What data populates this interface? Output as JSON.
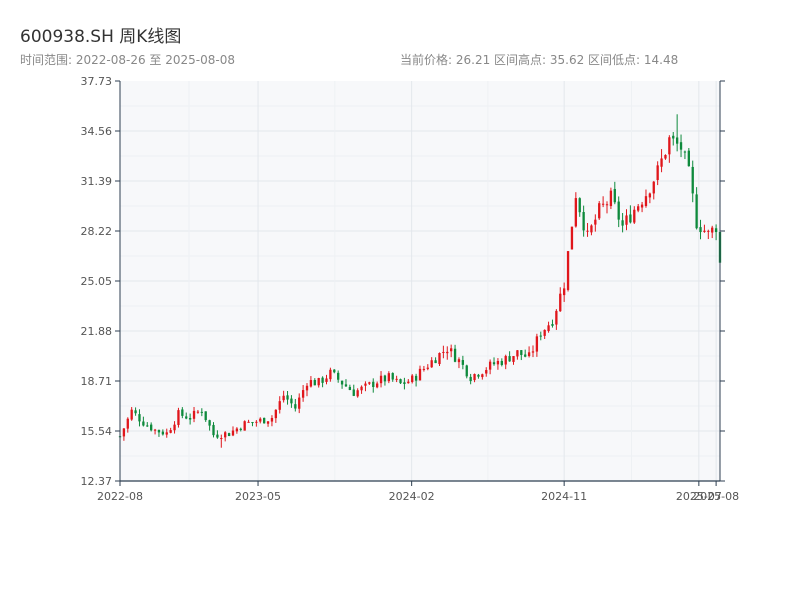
{
  "header": {
    "title": "600938.SH 周K线图",
    "range_text": "时间范围: 2022-08-26 至 2025-08-08",
    "stats_text": "当前价格: 26.21  区间高点: 35.62  区间低点: 14.48"
  },
  "colors": {
    "up": "#e0161b",
    "down": "#0e8a3c",
    "grid": "#e3e7ec",
    "plot_bg": "#f7f8fa",
    "axis": "#2c3e50"
  },
  "chart_data": {
    "type": "candlestick",
    "title": "600938.SH 周K线图",
    "start_date": "2022-08-26",
    "end_date": "2025-08-08",
    "ylim": [
      12.37,
      37.73
    ],
    "y_ticks": [
      "12.37",
      "15.54",
      "18.71",
      "21.88",
      "25.05",
      "28.22",
      "31.39",
      "34.56",
      "37.73"
    ],
    "x_ticks": [
      "2022-08",
      "2023-05",
      "2024-02",
      "2024-11",
      "2025-07",
      "2025-08"
    ],
    "grid": true,
    "current_price": 26.21,
    "high": 35.62,
    "low": 14.48,
    "close_path": [
      [
        0,
        15.2
      ],
      [
        3,
        16.8
      ],
      [
        6,
        16.1
      ],
      [
        9,
        15.6
      ],
      [
        12,
        15.4
      ],
      [
        15,
        16.6
      ],
      [
        18,
        16.4
      ],
      [
        21,
        16.9
      ],
      [
        24,
        15.3
      ],
      [
        28,
        15.4
      ],
      [
        32,
        16.0
      ],
      [
        36,
        16.2
      ],
      [
        39,
        16.4
      ],
      [
        42,
        17.8
      ],
      [
        45,
        17.0
      ],
      [
        48,
        18.7
      ],
      [
        51,
        18.6
      ],
      [
        54,
        19.2
      ],
      [
        57,
        18.6
      ],
      [
        60,
        18.0
      ],
      [
        63,
        18.3
      ],
      [
        66,
        18.7
      ],
      [
        69,
        18.9
      ],
      [
        72,
        18.5
      ],
      [
        75,
        18.8
      ],
      [
        78,
        19.5
      ],
      [
        81,
        20.2
      ],
      [
        84,
        20.8
      ],
      [
        87,
        20.0
      ],
      [
        90,
        19.0
      ],
      [
        93,
        19.4
      ],
      [
        96,
        19.8
      ],
      [
        99,
        20.1
      ],
      [
        102,
        20.5
      ],
      [
        105,
        20.2
      ],
      [
        108,
        21.8
      ],
      [
        111,
        22.6
      ],
      [
        114,
        24.9
      ],
      [
        117,
        30.6
      ],
      [
        120,
        27.8
      ],
      [
        123,
        29.5
      ],
      [
        126,
        30.3
      ],
      [
        129,
        28.5
      ],
      [
        132,
        29.6
      ],
      [
        135,
        30.6
      ],
      [
        138,
        32.0
      ],
      [
        141,
        34.0
      ],
      [
        144,
        33.5
      ],
      [
        146,
        31.8
      ],
      [
        148,
        28.8
      ],
      [
        151,
        28.0
      ],
      [
        154,
        28.8
      ],
      [
        157,
        26.6
      ],
      [
        160,
        27.2
      ],
      [
        163,
        29.3
      ],
      [
        165,
        29.8
      ],
      [
        168,
        28.2
      ],
      [
        171,
        26.5
      ],
      [
        174,
        26.0
      ],
      [
        177,
        26.3
      ],
      [
        180,
        27.2
      ],
      [
        183,
        27.4
      ],
      [
        186,
        29.4
      ],
      [
        189,
        28.6
      ],
      [
        192,
        27.3
      ],
      [
        195,
        26.8
      ],
      [
        198,
        25.8
      ],
      [
        201,
        26.2
      ],
      [
        204,
        24.8
      ],
      [
        208,
        23.8
      ],
      [
        211,
        25.0
      ],
      [
        214,
        25.4
      ],
      [
        217,
        25.7
      ],
      [
        220,
        26.0
      ],
      [
        223,
        26.4
      ],
      [
        226,
        27.6
      ],
      [
        229,
        26.3
      ],
      [
        232,
        26.2
      ],
      [
        235,
        26.3
      ],
      [
        238,
        26.1
      ],
      [
        241,
        26.3
      ]
    ]
  }
}
